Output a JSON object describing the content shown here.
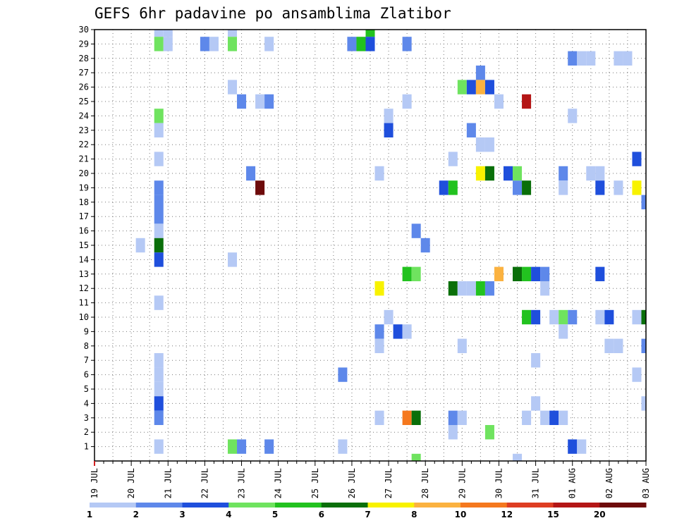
{
  "chart_data": {
    "type": "heatmap",
    "title": "GEFS 6hr padavine po ansamblima Zlatibor",
    "x_tick_labels": [
      "19 JUL",
      "20 JUL",
      "21 JUL",
      "22 JUL",
      "23 JUL",
      "24 JUL",
      "25 JUL",
      "26 JUL",
      "27 JUL",
      "28 JUL",
      "29 JUL",
      "30 JUL",
      "31 JUL",
      "01 AUG",
      "02 AUG",
      "03 AUG"
    ],
    "y_tick_labels": [
      "1",
      "2",
      "3",
      "4",
      "5",
      "6",
      "7",
      "8",
      "9",
      "10",
      "11",
      "12",
      "13",
      "14",
      "15",
      "16",
      "17",
      "18",
      "19",
      "20",
      "21",
      "22",
      "23",
      "24",
      "25",
      "26",
      "27",
      "28",
      "29",
      "30"
    ],
    "xlim_steps": [
      0,
      60
    ],
    "ylim": [
      0,
      30
    ],
    "grid": true,
    "colorbar": {
      "labels": [
        "1",
        "2",
        "3",
        "4",
        "5",
        "6",
        "7",
        "8",
        "10",
        "12",
        "15",
        "20"
      ],
      "colors": [
        "#b5c9f5",
        "#5e88ea",
        "#1f4fdc",
        "#6fe35f",
        "#22c21f",
        "#0a6f0a",
        "#f8f200",
        "#fbb240",
        "#f5781e",
        "#de3d22",
        "#b41616",
        "#6e0b0b"
      ]
    },
    "cells": [
      {
        "step": 7,
        "member": 30,
        "c": 0
      },
      {
        "step": 8,
        "member": 30,
        "c": 0
      },
      {
        "step": 15,
        "member": 30,
        "c": 0
      },
      {
        "step": 30,
        "member": 30,
        "c": 4
      },
      {
        "step": 7,
        "member": 29,
        "c": 3
      },
      {
        "step": 8,
        "member": 29,
        "c": 0
      },
      {
        "step": 12,
        "member": 29,
        "c": 1
      },
      {
        "step": 13,
        "member": 29,
        "c": 0
      },
      {
        "step": 15,
        "member": 29,
        "c": 3
      },
      {
        "step": 19,
        "member": 29,
        "c": 0
      },
      {
        "step": 28,
        "member": 29,
        "c": 1
      },
      {
        "step": 29,
        "member": 29,
        "c": 4
      },
      {
        "step": 30,
        "member": 29,
        "c": 2
      },
      {
        "step": 34,
        "member": 29,
        "c": 1
      },
      {
        "step": 52,
        "member": 28,
        "c": 1
      },
      {
        "step": 53,
        "member": 28,
        "c": 0
      },
      {
        "step": 54,
        "member": 28,
        "c": 0
      },
      {
        "step": 57,
        "member": 28,
        "c": 0
      },
      {
        "step": 58,
        "member": 28,
        "c": 0
      },
      {
        "step": 42,
        "member": 27,
        "c": 1
      },
      {
        "step": 15,
        "member": 26,
        "c": 0
      },
      {
        "step": 40,
        "member": 26,
        "c": 3
      },
      {
        "step": 41,
        "member": 26,
        "c": 2
      },
      {
        "step": 42,
        "member": 26,
        "c": 7
      },
      {
        "step": 43,
        "member": 26,
        "c": 2
      },
      {
        "step": 16,
        "member": 25,
        "c": 1
      },
      {
        "step": 18,
        "member": 25,
        "c": 0
      },
      {
        "step": 19,
        "member": 25,
        "c": 1
      },
      {
        "step": 34,
        "member": 25,
        "c": 0
      },
      {
        "step": 44,
        "member": 25,
        "c": 0
      },
      {
        "step": 47,
        "member": 25,
        "c": 10
      },
      {
        "step": 7,
        "member": 24,
        "c": 3
      },
      {
        "step": 32,
        "member": 24,
        "c": 0
      },
      {
        "step": 52,
        "member": 24,
        "c": 0
      },
      {
        "step": 7,
        "member": 23,
        "c": 0
      },
      {
        "step": 32,
        "member": 23,
        "c": 2
      },
      {
        "step": 41,
        "member": 23,
        "c": 1
      },
      {
        "step": 42,
        "member": 22,
        "c": 0
      },
      {
        "step": 43,
        "member": 22,
        "c": 0
      },
      {
        "step": 7,
        "member": 21,
        "c": 0
      },
      {
        "step": 39,
        "member": 21,
        "c": 0
      },
      {
        "step": 59,
        "member": 21,
        "c": 2
      },
      {
        "step": 17,
        "member": 20,
        "c": 1
      },
      {
        "step": 31,
        "member": 20,
        "c": 0
      },
      {
        "step": 42,
        "member": 20,
        "c": 6
      },
      {
        "step": 43,
        "member": 20,
        "c": 5
      },
      {
        "step": 45,
        "member": 20,
        "c": 2
      },
      {
        "step": 46,
        "member": 20,
        "c": 3
      },
      {
        "step": 51,
        "member": 20,
        "c": 1
      },
      {
        "step": 54,
        "member": 20,
        "c": 0
      },
      {
        "step": 55,
        "member": 20,
        "c": 0
      },
      {
        "step": 7,
        "member": 19,
        "c": 1
      },
      {
        "step": 18,
        "member": 19,
        "c": 11
      },
      {
        "step": 38,
        "member": 19,
        "c": 2
      },
      {
        "step": 39,
        "member": 19,
        "c": 4
      },
      {
        "step": 46,
        "member": 19,
        "c": 1
      },
      {
        "step": 47,
        "member": 19,
        "c": 5
      },
      {
        "step": 51,
        "member": 19,
        "c": 0
      },
      {
        "step": 55,
        "member": 19,
        "c": 2
      },
      {
        "step": 57,
        "member": 19,
        "c": 0
      },
      {
        "step": 59,
        "member": 19,
        "c": 6
      },
      {
        "step": 7,
        "member": 18,
        "c": 1
      },
      {
        "step": 60,
        "member": 18,
        "c": 1
      },
      {
        "step": 7,
        "member": 17,
        "c": 1
      },
      {
        "step": 7,
        "member": 16,
        "c": 0
      },
      {
        "step": 35,
        "member": 16,
        "c": 1
      },
      {
        "step": 5,
        "member": 15,
        "c": 0
      },
      {
        "step": 7,
        "member": 15,
        "c": 5
      },
      {
        "step": 36,
        "member": 15,
        "c": 1
      },
      {
        "step": 7,
        "member": 14,
        "c": 2
      },
      {
        "step": 15,
        "member": 14,
        "c": 0
      },
      {
        "step": 34,
        "member": 13,
        "c": 4
      },
      {
        "step": 35,
        "member": 13,
        "c": 3
      },
      {
        "step": 44,
        "member": 13,
        "c": 7
      },
      {
        "step": 46,
        "member": 13,
        "c": 5
      },
      {
        "step": 47,
        "member": 13,
        "c": 4
      },
      {
        "step": 48,
        "member": 13,
        "c": 2
      },
      {
        "step": 49,
        "member": 13,
        "c": 1
      },
      {
        "step": 55,
        "member": 13,
        "c": 2
      },
      {
        "step": 31,
        "member": 12,
        "c": 6
      },
      {
        "step": 39,
        "member": 12,
        "c": 5
      },
      {
        "step": 40,
        "member": 12,
        "c": 0
      },
      {
        "step": 41,
        "member": 12,
        "c": 0
      },
      {
        "step": 42,
        "member": 12,
        "c": 4
      },
      {
        "step": 43,
        "member": 12,
        "c": 1
      },
      {
        "step": 49,
        "member": 12,
        "c": 0
      },
      {
        "step": 7,
        "member": 11,
        "c": 0
      },
      {
        "step": 32,
        "member": 10,
        "c": 0
      },
      {
        "step": 47,
        "member": 10,
        "c": 4
      },
      {
        "step": 48,
        "member": 10,
        "c": 2
      },
      {
        "step": 50,
        "member": 10,
        "c": 0
      },
      {
        "step": 51,
        "member": 10,
        "c": 3
      },
      {
        "step": 52,
        "member": 10,
        "c": 1
      },
      {
        "step": 55,
        "member": 10,
        "c": 0
      },
      {
        "step": 56,
        "member": 10,
        "c": 2
      },
      {
        "step": 59,
        "member": 10,
        "c": 0
      },
      {
        "step": 60,
        "member": 10,
        "c": 5
      },
      {
        "step": 31,
        "member": 9,
        "c": 1
      },
      {
        "step": 33,
        "member": 9,
        "c": 2
      },
      {
        "step": 34,
        "member": 9,
        "c": 0
      },
      {
        "step": 51,
        "member": 9,
        "c": 0
      },
      {
        "step": 31,
        "member": 8,
        "c": 0
      },
      {
        "step": 40,
        "member": 8,
        "c": 0
      },
      {
        "step": 56,
        "member": 8,
        "c": 0
      },
      {
        "step": 57,
        "member": 8,
        "c": 0
      },
      {
        "step": 60,
        "member": 8,
        "c": 1
      },
      {
        "step": 7,
        "member": 7,
        "c": 0
      },
      {
        "step": 48,
        "member": 7,
        "c": 0
      },
      {
        "step": 7,
        "member": 6,
        "c": 0
      },
      {
        "step": 27,
        "member": 6,
        "c": 1
      },
      {
        "step": 59,
        "member": 6,
        "c": 0
      },
      {
        "step": 7,
        "member": 5,
        "c": 0
      },
      {
        "step": 7,
        "member": 4,
        "c": 2
      },
      {
        "step": 48,
        "member": 4,
        "c": 0
      },
      {
        "step": 60,
        "member": 4,
        "c": 0
      },
      {
        "step": 7,
        "member": 3,
        "c": 1
      },
      {
        "step": 31,
        "member": 3,
        "c": 0
      },
      {
        "step": 34,
        "member": 3,
        "c": 8
      },
      {
        "step": 35,
        "member": 3,
        "c": 5
      },
      {
        "step": 39,
        "member": 3,
        "c": 1
      },
      {
        "step": 40,
        "member": 3,
        "c": 0
      },
      {
        "step": 47,
        "member": 3,
        "c": 0
      },
      {
        "step": 49,
        "member": 3,
        "c": 0
      },
      {
        "step": 50,
        "member": 3,
        "c": 2
      },
      {
        "step": 51,
        "member": 3,
        "c": 0
      },
      {
        "step": 39,
        "member": 2,
        "c": 0
      },
      {
        "step": 43,
        "member": 2,
        "c": 3
      },
      {
        "step": 7,
        "member": 1,
        "c": 0
      },
      {
        "step": 15,
        "member": 1,
        "c": 3
      },
      {
        "step": 16,
        "member": 1,
        "c": 1
      },
      {
        "step": 19,
        "member": 1,
        "c": 1
      },
      {
        "step": 27,
        "member": 1,
        "c": 0
      },
      {
        "step": 52,
        "member": 1,
        "c": 2
      },
      {
        "step": 53,
        "member": 1,
        "c": 0
      },
      {
        "step": 35,
        "member": 0,
        "c": 3
      },
      {
        "step": 46,
        "member": 0,
        "c": 0
      }
    ]
  }
}
